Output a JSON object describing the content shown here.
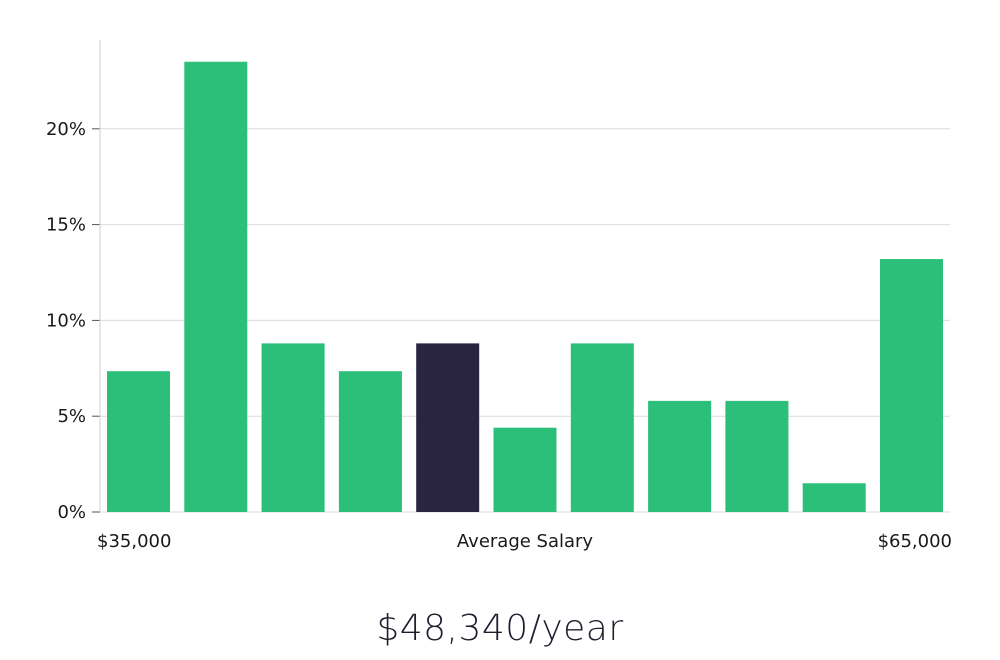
{
  "chart_data": {
    "type": "bar",
    "categories": [
      "1",
      "2",
      "3",
      "4",
      "5",
      "6",
      "7",
      "8",
      "9",
      "10",
      "11"
    ],
    "values": [
      7.35,
      23.5,
      8.8,
      7.35,
      8.8,
      4.4,
      8.8,
      5.8,
      5.8,
      1.5,
      13.2
    ],
    "highlight_index": 4,
    "ylim": [
      0,
      25
    ],
    "yticks": [
      0,
      5,
      10,
      15,
      20
    ],
    "ytick_labels": [
      "0%",
      "5%",
      "10%",
      "15%",
      "20%"
    ],
    "x_labels": {
      "left": "$35,000",
      "center": "Average Salary",
      "right": "$65,000"
    },
    "grid": true,
    "colors": {
      "bar": "#2bbf79",
      "highlight": "#29243f",
      "grid": "#dcdcdc",
      "axis": "#cfcfcf"
    }
  },
  "summary": {
    "salary": "$48,340/year"
  }
}
